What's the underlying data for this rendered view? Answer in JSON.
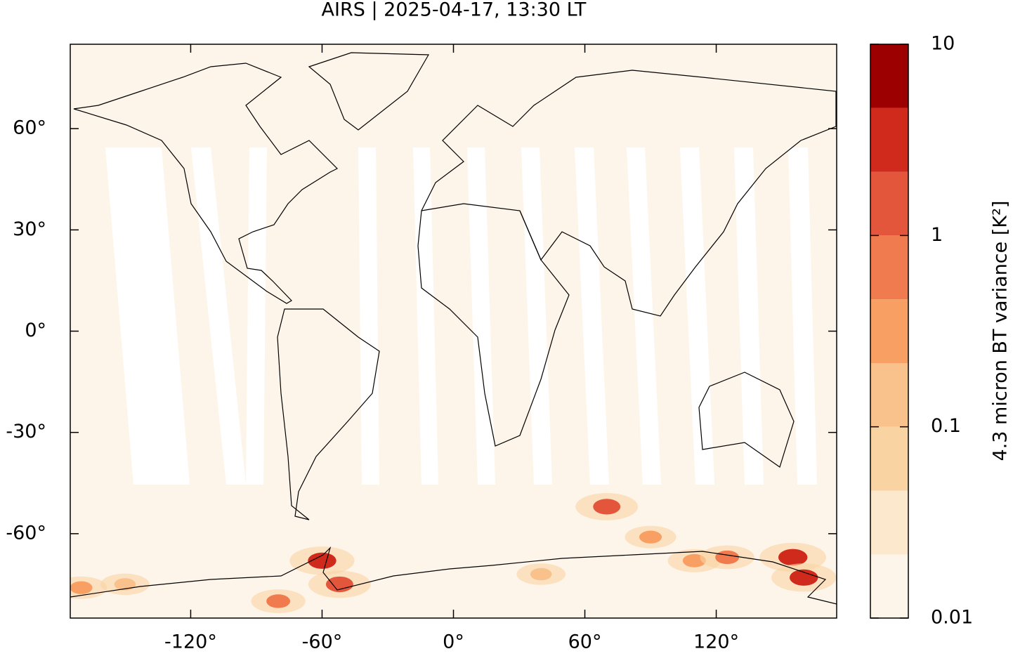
{
  "chart_data": {
    "type": "map",
    "title": "AIRS | 2025-04-17, 13:30 LT",
    "xlim": [
      -175,
      175
    ],
    "ylim": [
      -85,
      85
    ],
    "xticks": [
      {
        "value": -120,
        "label": "-120°"
      },
      {
        "value": -60,
        "label": "-60°"
      },
      {
        "value": 0,
        "label": "0°"
      },
      {
        "value": 60,
        "label": "60°"
      },
      {
        "value": 120,
        "label": "120°"
      }
    ],
    "yticks": [
      {
        "value": 60,
        "label": "60°"
      },
      {
        "value": 30,
        "label": "30°"
      },
      {
        "value": 0,
        "label": "0°"
      },
      {
        "value": -30,
        "label": "-30°"
      },
      {
        "value": -60,
        "label": "-60°"
      }
    ],
    "colorbar": {
      "label": "4.3 micron BT variance [K²]",
      "log": true,
      "lim": [
        0.01,
        10
      ],
      "ticks": [
        0.01,
        0.1,
        1,
        10
      ],
      "levels": [
        0.01,
        0.0215,
        0.0464,
        0.1,
        0.215,
        0.464,
        1,
        2.15,
        4.64,
        10
      ],
      "colors": [
        "#fef5ea",
        "#fce8cd",
        "#fad3a3",
        "#f9c18b",
        "#f8a064",
        "#f07b4e",
        "#e3563c",
        "#cf2a1c",
        "#9c0000"
      ]
    },
    "hotspots": [
      {
        "lon": -60,
        "lat": -68,
        "value": 3
      },
      {
        "lon": -52,
        "lat": -75,
        "value": 2
      },
      {
        "lon": -80,
        "lat": -80,
        "value": 0.5
      },
      {
        "lon": 70,
        "lat": -52,
        "value": 2
      },
      {
        "lon": 155,
        "lat": -67,
        "value": 4
      },
      {
        "lon": 160,
        "lat": -73,
        "value": 3
      },
      {
        "lon": 90,
        "lat": -61,
        "value": 0.3
      },
      {
        "lon": 110,
        "lat": -68,
        "value": 0.4
      },
      {
        "lon": 125,
        "lat": -67,
        "value": 0.5
      },
      {
        "lon": -170,
        "lat": -76,
        "value": 0.3
      },
      {
        "lon": -150,
        "lat": -75,
        "value": 0.2
      },
      {
        "lon": 40,
        "lat": -72,
        "value": 0.2
      }
    ]
  }
}
